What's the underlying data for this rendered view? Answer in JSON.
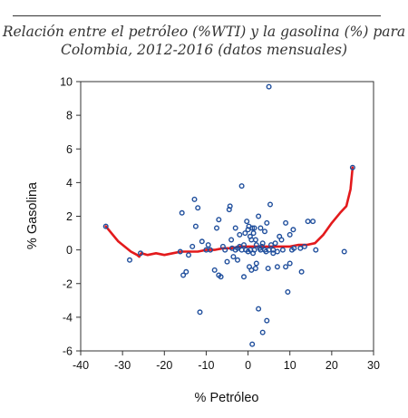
{
  "chart_data": {
    "type": "scatter",
    "title": "Relación entre el petróleo (%WTI) y la gasolina (%) para Colombia, 2012-2016 (datos mensuales)",
    "title_lines": [
      "Relación entre el petróleo (%WTI) y la gasolina (%) para",
      "Colombia, 2012-2016 (datos mensuales)"
    ],
    "xlabel": "% Petróleo",
    "ylabel": "% Gasolina",
    "xlim": [
      -40,
      30
    ],
    "ylim": [
      -6,
      10
    ],
    "xticks": [
      -40,
      -30,
      -20,
      -10,
      0,
      10,
      20,
      30
    ],
    "yticks": [
      -6,
      -4,
      -2,
      0,
      2,
      4,
      6,
      8,
      10
    ],
    "grid": false,
    "point_color": "#1f4e9c",
    "line_color": "#e31a1c",
    "points": [
      [
        -34,
        1.4
      ],
      [
        -28.3,
        -0.6
      ],
      [
        -25.7,
        -0.2
      ],
      [
        -16.2,
        -0.1
      ],
      [
        -15.8,
        2.2
      ],
      [
        -15.5,
        -1.5
      ],
      [
        -14.8,
        -1.3
      ],
      [
        -14.2,
        -0.3
      ],
      [
        -13.3,
        0.2
      ],
      [
        -12.8,
        3.0
      ],
      [
        -12.5,
        1.4
      ],
      [
        -12.0,
        2.5
      ],
      [
        -11.5,
        -3.7
      ],
      [
        -11.0,
        0.5
      ],
      [
        -10.0,
        0.0
      ],
      [
        -9.5,
        0.3
      ],
      [
        -9.0,
        0.0
      ],
      [
        -8.0,
        -1.2
      ],
      [
        -7.5,
        1.3
      ],
      [
        -7.0,
        1.8
      ],
      [
        -7.0,
        -1.5
      ],
      [
        -6.5,
        -1.6
      ],
      [
        -6.0,
        0.2
      ],
      [
        -5.5,
        0.0
      ],
      [
        -5.0,
        -0.7
      ],
      [
        -4.5,
        2.4
      ],
      [
        -4.3,
        2.6
      ],
      [
        -4.0,
        0.6
      ],
      [
        -3.8,
        0.1
      ],
      [
        -3.5,
        -0.4
      ],
      [
        -3.0,
        0.0
      ],
      [
        -3.0,
        1.3
      ],
      [
        -2.5,
        0.1
      ],
      [
        -2.5,
        -0.6
      ],
      [
        -2.0,
        0.2
      ],
      [
        -2.0,
        0.9
      ],
      [
        -1.5,
        3.8
      ],
      [
        -1.5,
        0.0
      ],
      [
        -1.0,
        -1.6
      ],
      [
        -1.0,
        0.3
      ],
      [
        -0.7,
        1.0
      ],
      [
        -0.5,
        0.0
      ],
      [
        -0.3,
        1.7
      ],
      [
        0.0,
        1.2
      ],
      [
        0.0,
        -0.1
      ],
      [
        0.2,
        1.4
      ],
      [
        0.3,
        -1.0
      ],
      [
        0.5,
        0.8
      ],
      [
        0.6,
        0.0
      ],
      [
        0.8,
        -1.2
      ],
      [
        0.8,
        0.6
      ],
      [
        1.0,
        1.3
      ],
      [
        1.0,
        -5.6
      ],
      [
        1.2,
        -0.2
      ],
      [
        1.3,
        1.0
      ],
      [
        1.5,
        0.0
      ],
      [
        1.5,
        1.3
      ],
      [
        1.8,
        0.6
      ],
      [
        1.8,
        -1.1
      ],
      [
        2.0,
        0.3
      ],
      [
        2.0,
        -0.8
      ],
      [
        2.5,
        2.0
      ],
      [
        2.5,
        -3.5
      ],
      [
        2.8,
        0.1
      ],
      [
        3.0,
        0.0
      ],
      [
        3.0,
        1.3
      ],
      [
        3.3,
        0.2
      ],
      [
        3.5,
        -4.9
      ],
      [
        3.5,
        0.4
      ],
      [
        4.0,
        0.0
      ],
      [
        4.0,
        1.1
      ],
      [
        4.3,
        -0.1
      ],
      [
        4.5,
        -4.2
      ],
      [
        4.5,
        1.6
      ],
      [
        4.8,
        -1.1
      ],
      [
        5.0,
        9.7
      ],
      [
        5.0,
        0.0
      ],
      [
        5.3,
        2.7
      ],
      [
        5.5,
        0.3
      ],
      [
        6.0,
        -0.2
      ],
      [
        6.0,
        0.0
      ],
      [
        6.5,
        0.4
      ],
      [
        7.0,
        -0.1
      ],
      [
        7.0,
        -1.0
      ],
      [
        7.5,
        0.8
      ],
      [
        8.0,
        0.6
      ],
      [
        8.3,
        0.0
      ],
      [
        9.0,
        1.6
      ],
      [
        9.0,
        -1.0
      ],
      [
        9.5,
        -2.5
      ],
      [
        10.0,
        0.9
      ],
      [
        10.0,
        -0.8
      ],
      [
        10.5,
        0.0
      ],
      [
        10.8,
        1.2
      ],
      [
        11.0,
        0.1
      ],
      [
        12.5,
        0.1
      ],
      [
        12.8,
        -1.3
      ],
      [
        13.5,
        0.2
      ],
      [
        14.3,
        1.7
      ],
      [
        15.5,
        1.7
      ],
      [
        16.2,
        0.0
      ],
      [
        23.0,
        -0.1
      ],
      [
        25.0,
        4.9
      ]
    ],
    "fit_line": [
      [
        -34,
        1.4
      ],
      [
        -31,
        0.5
      ],
      [
        -28,
        -0.1
      ],
      [
        -26.5,
        -0.3
      ],
      [
        -26,
        -0.4
      ],
      [
        -25.5,
        -0.2
      ],
      [
        -24,
        -0.3
      ],
      [
        -22,
        -0.2
      ],
      [
        -20,
        -0.3
      ],
      [
        -18,
        -0.2
      ],
      [
        -16,
        -0.1
      ],
      [
        -14,
        -0.1
      ],
      [
        -12,
        -0.1
      ],
      [
        -10,
        0.0
      ],
      [
        -8,
        0.0
      ],
      [
        -6,
        0.1
      ],
      [
        -4,
        0.1
      ],
      [
        -2,
        0.2
      ],
      [
        0,
        0.2
      ],
      [
        2,
        0.2
      ],
      [
        4,
        0.2
      ],
      [
        6,
        0.2
      ],
      [
        8,
        0.2
      ],
      [
        10,
        0.2
      ],
      [
        12,
        0.3
      ],
      [
        14,
        0.3
      ],
      [
        16,
        0.4
      ],
      [
        18,
        0.9
      ],
      [
        20,
        1.6
      ],
      [
        22,
        2.2
      ],
      [
        23.5,
        2.6
      ],
      [
        24.5,
        3.6
      ],
      [
        25,
        4.9
      ]
    ]
  }
}
